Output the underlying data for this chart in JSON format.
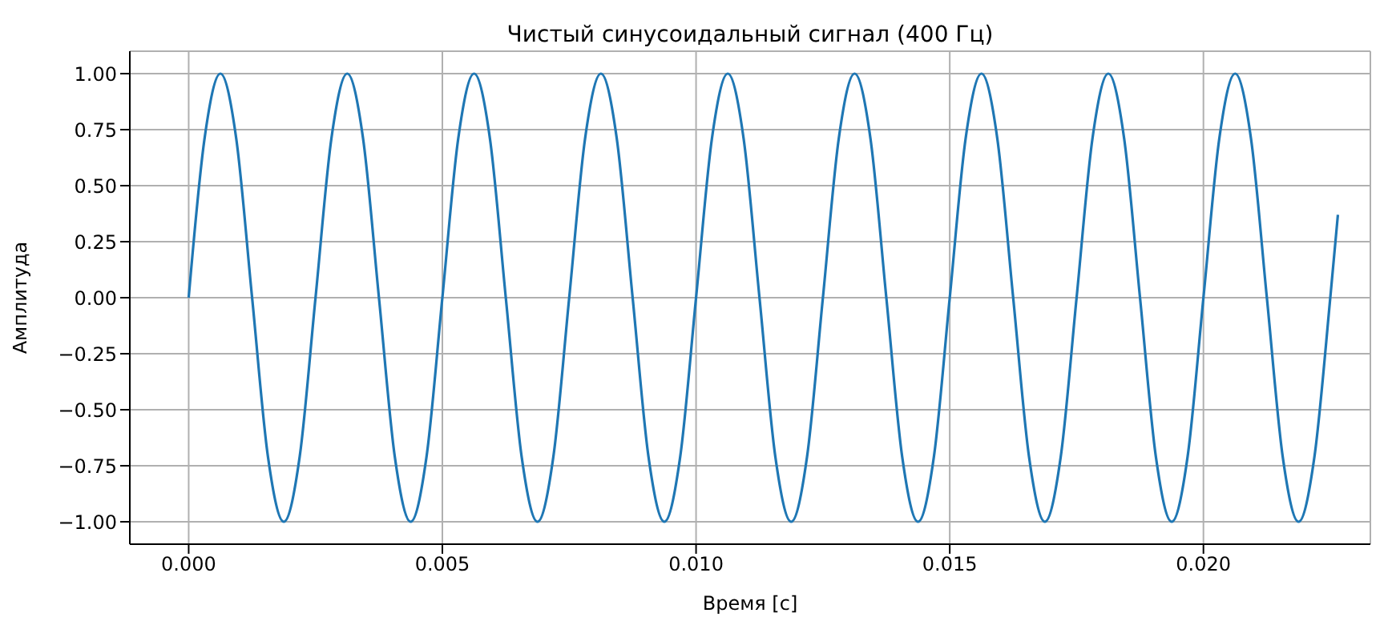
{
  "chart_data": {
    "type": "line",
    "title": "Чистый синусоидальный сигнал (400 Гц)",
    "xlabel": "Время [с]",
    "ylabel": "Амплитуда",
    "x": [
      0,
      0.0003125,
      0.000625,
      0.0009375,
      0.00125,
      0.0015625,
      0.001875,
      0.0021875,
      0.0025,
      0.0028125,
      0.003125,
      0.0034375,
      0.00375,
      0.0040625,
      0.004375,
      0.0046875,
      0.005,
      0.0053125,
      0.005625,
      0.0059375,
      0.00625,
      0.0065625,
      0.006875,
      0.0071875,
      0.0075,
      0.0078125,
      0.008125,
      0.0084375,
      0.00875,
      0.0090625,
      0.009375,
      0.0096875,
      0.01,
      0.0103125,
      0.010625,
      0.0109375,
      0.01125,
      0.0115625,
      0.011875,
      0.0121875,
      0.0125,
      0.0128125,
      0.013125,
      0.0134375,
      0.01375,
      0.0140625,
      0.014375,
      0.0146875,
      0.015,
      0.0153125,
      0.015625,
      0.0159375,
      0.01625,
      0.0165625,
      0.016875,
      0.0171875,
      0.0175,
      0.0178125,
      0.018125,
      0.0184375,
      0.01875,
      0.0190625,
      0.019375,
      0.0196875,
      0.02,
      0.0203125,
      0.020625,
      0.0209375,
      0.02125,
      0.0215625,
      0.021875,
      0.0221875,
      0.0225,
      0.02265
    ],
    "series": [
      {
        "color": "#1f77b4",
        "values": [
          0,
          0.71,
          1,
          0.71,
          0,
          -0.71,
          -1,
          -0.71,
          0,
          0.71,
          1,
          0.71,
          0,
          -0.71,
          -1,
          -0.71,
          0,
          0.71,
          1,
          0.71,
          0,
          -0.71,
          -1,
          -0.71,
          0,
          0.71,
          1,
          0.71,
          0,
          -0.71,
          -1,
          -0.71,
          0,
          0.71,
          1,
          0.71,
          0,
          -0.71,
          -1,
          -0.71,
          0,
          0.71,
          1,
          0.71,
          0,
          -0.71,
          -1,
          -0.71,
          0,
          0.71,
          1,
          0.71,
          0,
          -0.71,
          -1,
          -0.71,
          0,
          0.71,
          1,
          0.71,
          0,
          -0.71,
          -1,
          -0.71,
          0,
          0.71,
          1,
          0.71,
          0,
          -0.71,
          -1,
          -0.71,
          0,
          0.37
        ]
      }
    ],
    "xlim": [
      -0.00116,
      0.02329
    ],
    "ylim": [
      -1.1,
      1.1
    ],
    "xticks": [
      {
        "value": 0,
        "label": "0.000"
      },
      {
        "value": 0.005,
        "label": "0.005"
      },
      {
        "value": 0.01,
        "label": "0.010"
      },
      {
        "value": 0.015,
        "label": "0.015"
      },
      {
        "value": 0.02,
        "label": "0.020"
      }
    ],
    "yticks": [
      {
        "value": -1,
        "label": "−1.00"
      },
      {
        "value": -0.75,
        "label": "−0.75"
      },
      {
        "value": -0.5,
        "label": "−0.50"
      },
      {
        "value": -0.25,
        "label": "−0.25"
      },
      {
        "value": 0,
        "label": "0.00"
      },
      {
        "value": 0.25,
        "label": "0.25"
      },
      {
        "value": 0.5,
        "label": "0.50"
      },
      {
        "value": 0.75,
        "label": "0.75"
      },
      {
        "value": 1,
        "label": "1.00"
      }
    ],
    "grid": true,
    "marker": "none",
    "line_style": "solid"
  }
}
